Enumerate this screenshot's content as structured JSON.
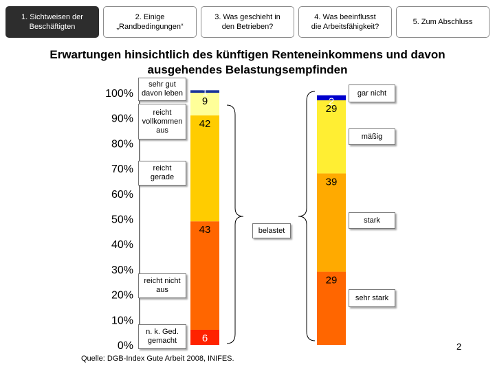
{
  "nav": {
    "tabs": [
      {
        "label": "1. Sichtweisen der\nBeschäftigten",
        "active": true
      },
      {
        "label": "2. Einige\n„Randbedingungen“",
        "active": false
      },
      {
        "label": "3. Was geschieht in\nden Betrieben?",
        "active": false
      },
      {
        "label": "4. Was beeinflusst\ndie Arbeitsfähigkeit?",
        "active": false
      },
      {
        "label": "5. Zum Abschluss",
        "active": false
      }
    ]
  },
  "slide": {
    "title": "Erwartungen hinsichtlich des künftigen Renteneinkommens und davon ausgehendes Belastungsempfinden",
    "source": "Quelle: DGB-Index Gute Arbeit 2008, INIFES.",
    "page_number": "2"
  },
  "chart_data": {
    "type": "bar",
    "stacked": true,
    "title": "Erwartungen hinsichtlich des künftigen Renteneinkommens und davon ausgehendes Belastungsempfinden",
    "ylim": [
      0,
      100
    ],
    "yticks": [
      "0%",
      "10%",
      "20%",
      "30%",
      "40%",
      "50%",
      "60%",
      "70%",
      "80%",
      "90%",
      "100%"
    ],
    "bars": [
      {
        "name": "Renteneinkommen",
        "segments": [
          {
            "label": "n. k. Ged.\ngemacht",
            "value": 6,
            "value_label": "6",
            "color": "#ff2200"
          },
          {
            "label": "reicht nicht\naus",
            "value": 43,
            "value_label": "43",
            "color": "#ff6600"
          },
          {
            "label": "reicht\ngerade",
            "value": 42,
            "value_label": "42",
            "color": "#ffcc00"
          },
          {
            "label": "reicht\nvollkommen\naus",
            "value": 9,
            "value_label": "9",
            "color": "#ffff99"
          },
          {
            "label": "sehr gut\ndavon leben",
            "value": 1,
            "value_label": "1",
            "color": "#1a3399"
          }
        ]
      },
      {
        "name": "Belastungsempfinden",
        "segments": [
          {
            "label": "sehr stark",
            "value": 29,
            "value_label": "29",
            "color": "#ff6600"
          },
          {
            "label": "stark",
            "value": 39,
            "value_label": "39",
            "color": "#ffaa00"
          },
          {
            "label": "mäßig",
            "value": 29,
            "value_label": "29",
            "color": "#ffee33"
          },
          {
            "label": "gar nicht",
            "value": 2,
            "value_label": "2",
            "color": "#0000cc"
          }
        ]
      }
    ],
    "annotation": "belastet",
    "colors": {
      "axis": "#000000",
      "label_border": "#777777"
    }
  }
}
